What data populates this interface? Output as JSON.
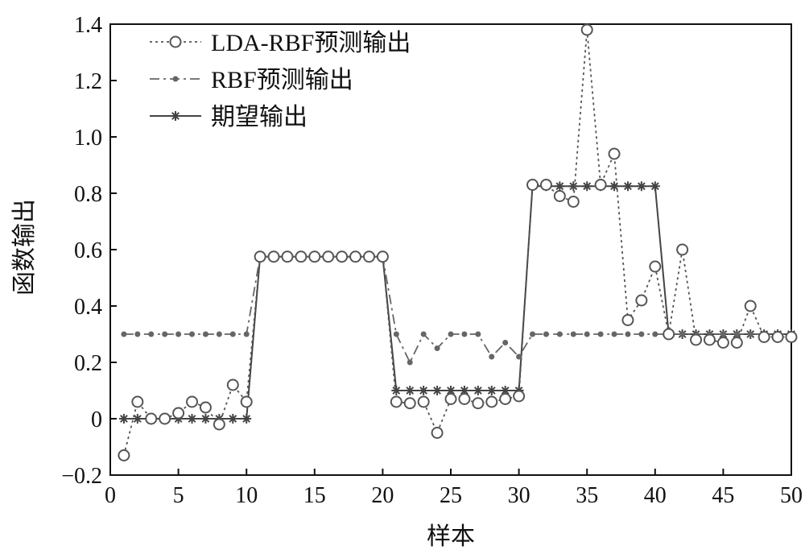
{
  "chart_data": {
    "type": "line",
    "xlabel": "样本",
    "ylabel": "函数输出",
    "xlim": [
      0,
      50
    ],
    "ylim": [
      -0.2,
      1.4
    ],
    "xticks": [
      "0",
      "5",
      "10",
      "15",
      "20",
      "25",
      "30",
      "35",
      "40",
      "45",
      "50"
    ],
    "yticks": [
      "−0.2",
      "0",
      "0.2",
      "0.4",
      "0.6",
      "0.8",
      "1.0",
      "1.2",
      "1.4"
    ],
    "grid": false,
    "legend_position": "top-left",
    "x": [
      1,
      2,
      3,
      4,
      5,
      6,
      7,
      8,
      9,
      10,
      11,
      12,
      13,
      14,
      15,
      16,
      17,
      18,
      19,
      20,
      21,
      22,
      23,
      24,
      25,
      26,
      27,
      28,
      29,
      30,
      31,
      32,
      33,
      34,
      35,
      36,
      37,
      38,
      39,
      40,
      41,
      42,
      43,
      44,
      45,
      46,
      47,
      48,
      49,
      50
    ],
    "series": [
      {
        "name": "LDA-RBF预测输出",
        "style": "dotted-circle",
        "color": "#555555",
        "values": [
          -0.13,
          0.06,
          0.0,
          0.0,
          0.02,
          0.06,
          0.04,
          -0.02,
          0.12,
          0.06,
          0.575,
          0.575,
          0.575,
          0.575,
          0.575,
          0.575,
          0.575,
          0.575,
          0.575,
          0.575,
          0.06,
          0.055,
          0.06,
          -0.05,
          0.07,
          0.07,
          0.055,
          0.06,
          0.07,
          0.08,
          0.83,
          0.83,
          0.79,
          0.77,
          1.38,
          0.83,
          0.94,
          0.35,
          0.42,
          0.54,
          0.3,
          0.6,
          0.28,
          0.28,
          0.27,
          0.27,
          0.4,
          0.29,
          0.29,
          0.29
        ]
      },
      {
        "name": "RBF预测输出",
        "style": "dashdot-dot",
        "color": "#666666",
        "values": [
          0.3,
          0.3,
          0.3,
          0.3,
          0.3,
          0.3,
          0.3,
          0.3,
          0.3,
          0.3,
          0.575,
          0.575,
          0.575,
          0.575,
          0.575,
          0.575,
          0.575,
          0.575,
          0.575,
          0.575,
          0.3,
          0.2,
          0.3,
          0.25,
          0.3,
          0.3,
          0.3,
          0.22,
          0.27,
          0.22,
          0.3,
          0.3,
          0.3,
          0.3,
          0.3,
          0.3,
          0.3,
          0.3,
          0.3,
          0.3,
          0.3,
          0.3,
          0.3,
          0.3,
          0.3,
          0.3,
          0.3,
          0.3,
          0.3,
          0.3
        ]
      },
      {
        "name": "期望输出",
        "style": "solid-star",
        "color": "#444444",
        "values": [
          0,
          0,
          0,
          0,
          0,
          0,
          0,
          0,
          0,
          0,
          0.575,
          0.575,
          0.575,
          0.575,
          0.575,
          0.575,
          0.575,
          0.575,
          0.575,
          0.575,
          0.1,
          0.1,
          0.1,
          0.1,
          0.1,
          0.1,
          0.1,
          0.1,
          0.1,
          0.1,
          0.825,
          0.825,
          0.825,
          0.825,
          0.825,
          0.825,
          0.825,
          0.825,
          0.825,
          0.825,
          0.3,
          0.3,
          0.3,
          0.3,
          0.3,
          0.3,
          0.3,
          0.3,
          0.3,
          0.3
        ]
      }
    ]
  }
}
